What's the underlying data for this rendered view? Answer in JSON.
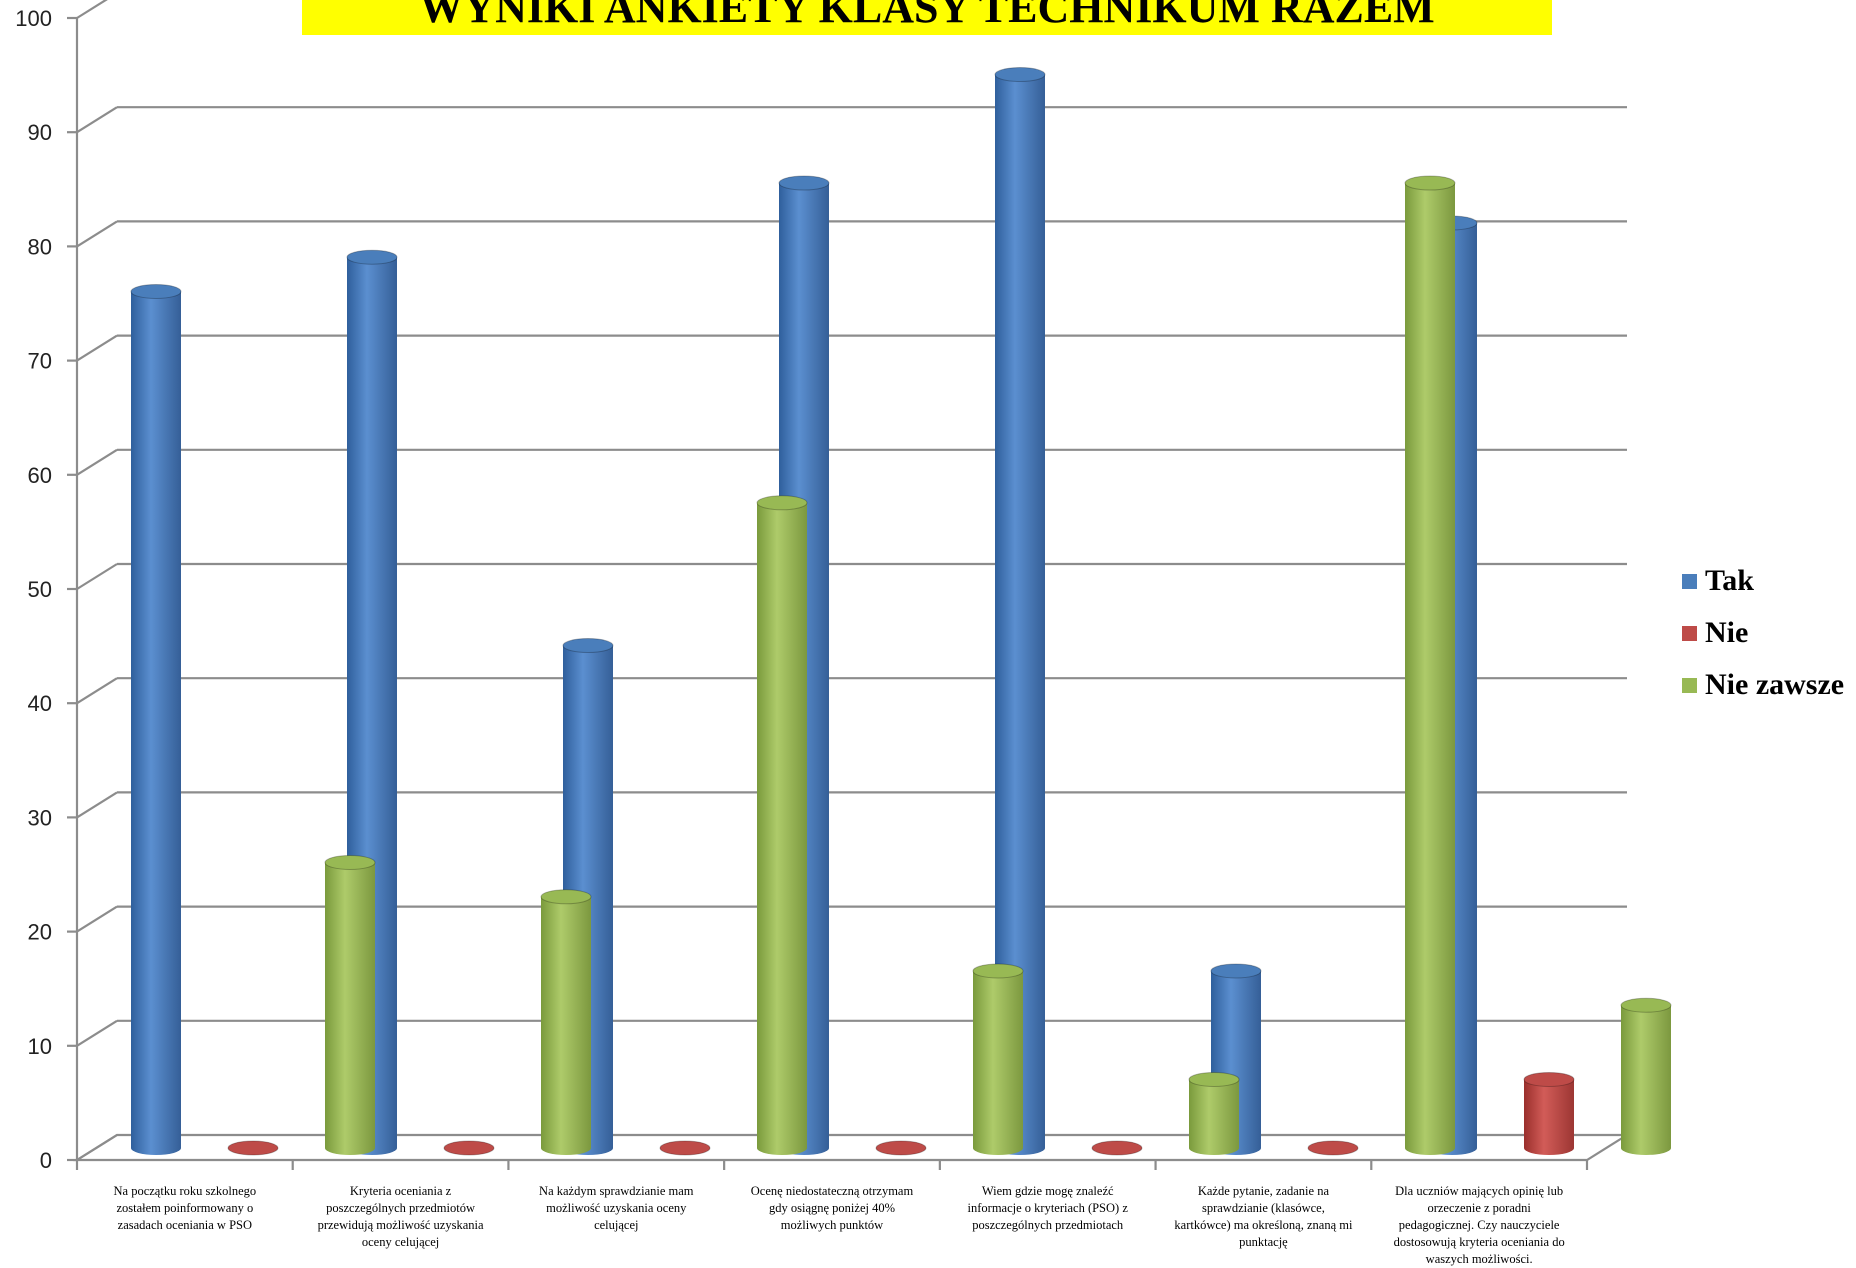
{
  "chart_data": {
    "type": "bar",
    "title": "WYNIKI ANKIETY KLASY TECHNIKUM RAZEM",
    "categories": [
      "Na początku roku szkolnego zostałem poinformowany o zasadach oceniania w PSO",
      "Kryteria oceniania z poszczególnych przedmiotów przewidują możliwość uzyskania oceny celującej",
      "Na każdym sprawdzianie mam możliwość uzyskania oceny celującej",
      "Ocenę niedostateczną otrzymam gdy osiągnę poniżej 40% możliwych punktów",
      "Wiem gdzie mogę znaleźć informacje o kryteriach (PSO) z poszczególnych przedmiotach",
      "Każde pytanie, zadanie na sprawdzianie (klasówce, kartkówce) ma określoną, znaną mi punktację",
      "Dla uczniów mających opinię lub orzeczenie z poradni pedagogicznej. Czy nauczyciele dostosowują kryteria oceniania do waszych możliwości."
    ],
    "series": [
      {
        "name": "Tak",
        "color": "#4a7ebb",
        "values": [
          75,
          78,
          44,
          84.5,
          94,
          15.5,
          81
        ]
      },
      {
        "name": "Nie",
        "color": "#be4b48",
        "values": [
          0,
          0,
          0,
          0,
          0,
          0,
          6
        ]
      },
      {
        "name": "Nie zawsze",
        "color": "#98b954",
        "values": [
          25,
          22,
          56.5,
          15.5,
          6,
          84.5,
          12.5
        ]
      }
    ],
    "yticks": [
      "0",
      "10",
      "20",
      "30",
      "40",
      "50",
      "60",
      "70",
      "80",
      "90",
      "100"
    ],
    "ylim": [
      0,
      100
    ],
    "grid": true,
    "legend_position": "right"
  }
}
